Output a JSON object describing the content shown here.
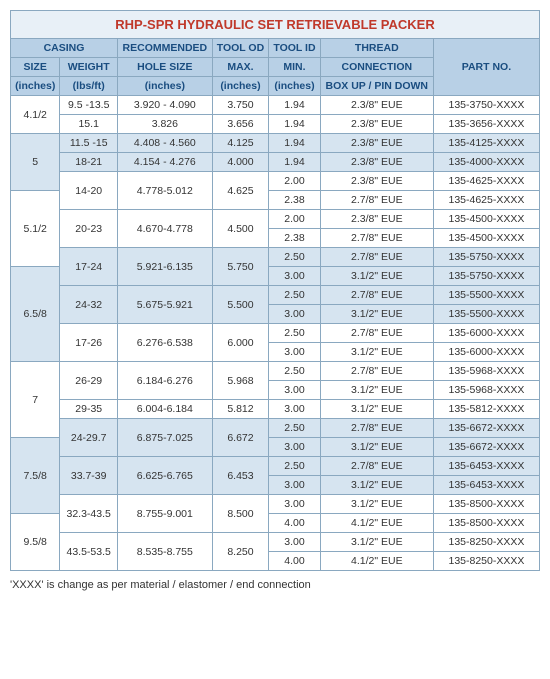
{
  "title": "RHP-SPR HYDRAULIC SET RETRIEVABLE PACKER",
  "headers": {
    "casing": "CASING",
    "size": "SIZE",
    "size_u": "(inches)",
    "weight": "WEIGHT",
    "weight_u": "(lbs/ft)",
    "hole": "RECOMMENDED",
    "hole2": "HOLE SIZE",
    "hole_u": "(inches)",
    "tod": "TOOL OD",
    "tod2": "MAX.",
    "tod_u": "(inches)",
    "tid": "TOOL ID",
    "tid2": "MIN.",
    "tid_u": "(inches)",
    "thread": "THREAD",
    "thread2": "CONNECTION",
    "thread3": "BOX UP / PIN DOWN",
    "part": "PART NO."
  },
  "rows": [
    {
      "size": "4.1/2",
      "weight": "9.5 -13.5",
      "hole": "3.920 - 4.090",
      "tod": "3.750",
      "tid": "1.94",
      "thread": "2.3/8\" EUE",
      "part": "135-3750-XXXX",
      "shade": false
    },
    {
      "size": "",
      "weight": "15.1",
      "hole": "3.826",
      "tod": "3.656",
      "tid": "1.94",
      "thread": "2.3/8\" EUE",
      "part": "135-3656-XXXX",
      "shade": false
    },
    {
      "size": "5",
      "weight": "11.5 -15",
      "hole": "4.408 - 4.560",
      "tod": "4.125",
      "tid": "1.94",
      "thread": "2.3/8\" EUE",
      "part": "135-4125-XXXX",
      "shade": true
    },
    {
      "size": "",
      "weight": "18-21",
      "hole": "4.154 - 4.276",
      "tod": "4.000",
      "tid": "1.94",
      "thread": "2.3/8\" EUE",
      "part": "135-4000-XXXX",
      "shade": true
    },
    {
      "size": "",
      "weight": "14-20",
      "hole": "4.778-5.012",
      "tod": "4.625",
      "tid": "2.00",
      "thread": "2.3/8\" EUE",
      "part": "135-4625-XXXX",
      "shade": false
    },
    {
      "size": "5.1/2",
      "weight": "",
      "hole": "",
      "tod": "",
      "tid": "2.38",
      "thread": "2.7/8\" EUE",
      "part": "135-4625-XXXX",
      "shade": false
    },
    {
      "size": "",
      "weight": "20-23",
      "hole": "4.670-4.778",
      "tod": "4.500",
      "tid": "2.00",
      "thread": "2.3/8\" EUE",
      "part": "135-4500-XXXX",
      "shade": false
    },
    {
      "size": "",
      "weight": "",
      "hole": "",
      "tod": "",
      "tid": "2.38",
      "thread": "2.7/8\" EUE",
      "part": "135-4500-XXXX",
      "shade": false
    },
    {
      "size": "",
      "weight": "17-24",
      "hole": "5.921-6.135",
      "tod": "5.750",
      "tid": "2.50",
      "thread": "2.7/8\" EUE",
      "part": "135-5750-XXXX",
      "shade": true
    },
    {
      "size": "6.5/8",
      "weight": "",
      "hole": "",
      "tod": "",
      "tid": "3.00",
      "thread": "3.1/2\" EUE",
      "part": "135-5750-XXXX",
      "shade": true
    },
    {
      "size": "",
      "weight": "24-32",
      "hole": "5.675-5.921",
      "tod": "5.500",
      "tid": "2.50",
      "thread": "2.7/8\" EUE",
      "part": "135-5500-XXXX",
      "shade": true
    },
    {
      "size": "",
      "weight": "",
      "hole": "",
      "tod": "",
      "tid": "3.00",
      "thread": "3.1/2\" EUE",
      "part": "135-5500-XXXX",
      "shade": true
    },
    {
      "size": "",
      "weight": "17-26",
      "hole": "6.276-6.538",
      "tod": "6.000",
      "tid": "2.50",
      "thread": "2.7/8\" EUE",
      "part": "135-6000-XXXX",
      "shade": false
    },
    {
      "size": "",
      "weight": "",
      "hole": "",
      "tod": "",
      "tid": "3.00",
      "thread": "3.1/2\" EUE",
      "part": "135-6000-XXXX",
      "shade": false
    },
    {
      "size": "7",
      "weight": "26-29",
      "hole": "6.184-6.276",
      "tod": "5.968",
      "tid": "2.50",
      "thread": "2.7/8\" EUE",
      "part": "135-5968-XXXX",
      "shade": false
    },
    {
      "size": "",
      "weight": "",
      "hole": "",
      "tod": "",
      "tid": "3.00",
      "thread": "3.1/2\" EUE",
      "part": "135-5968-XXXX",
      "shade": false
    },
    {
      "size": "",
      "weight": "29-35",
      "hole": "6.004-6.184",
      "tod": "5.812",
      "tid": "3.00",
      "thread": "3.1/2\" EUE",
      "part": "135-5812-XXXX",
      "shade": false
    },
    {
      "size": "",
      "weight": "24-29.7",
      "hole": "6.875-7.025",
      "tod": "6.672",
      "tid": "2.50",
      "thread": "2.7/8\" EUE",
      "part": "135-6672-XXXX",
      "shade": true
    },
    {
      "size": "7.5/8",
      "weight": "",
      "hole": "",
      "tod": "",
      "tid": "3.00",
      "thread": "3.1/2\" EUE",
      "part": "135-6672-XXXX",
      "shade": true
    },
    {
      "size": "",
      "weight": "33.7-39",
      "hole": "6.625-6.765",
      "tod": "6.453",
      "tid": "2.50",
      "thread": "2.7/8\" EUE",
      "part": "135-6453-XXXX",
      "shade": true
    },
    {
      "size": "",
      "weight": "",
      "hole": "",
      "tod": "",
      "tid": "3.00",
      "thread": "3.1/2\" EUE",
      "part": "135-6453-XXXX",
      "shade": true
    },
    {
      "size": "",
      "weight": "32.3-43.5",
      "hole": "8.755-9.001",
      "tod": "8.500",
      "tid": "3.00",
      "thread": "3.1/2\" EUE",
      "part": "135-8500-XXXX",
      "shade": false
    },
    {
      "size": "9.5/8",
      "weight": "",
      "hole": "",
      "tod": "",
      "tid": "4.00",
      "thread": "4.1/2\" EUE",
      "part": "135-8500-XXXX",
      "shade": false
    },
    {
      "size": "",
      "weight": "43.5-53.5",
      "hole": "8.535-8.755",
      "tod": "8.250",
      "tid": "3.00",
      "thread": "3.1/2\" EUE",
      "part": "135-8250-XXXX",
      "shade": false
    },
    {
      "size": "",
      "weight": "",
      "hole": "",
      "tod": "",
      "tid": "4.00",
      "thread": "4.1/2\" EUE",
      "part": "135-8250-XXXX",
      "shade": false
    }
  ],
  "footnote": "'XXXX' is change as per material / elastomer / end connection"
}
